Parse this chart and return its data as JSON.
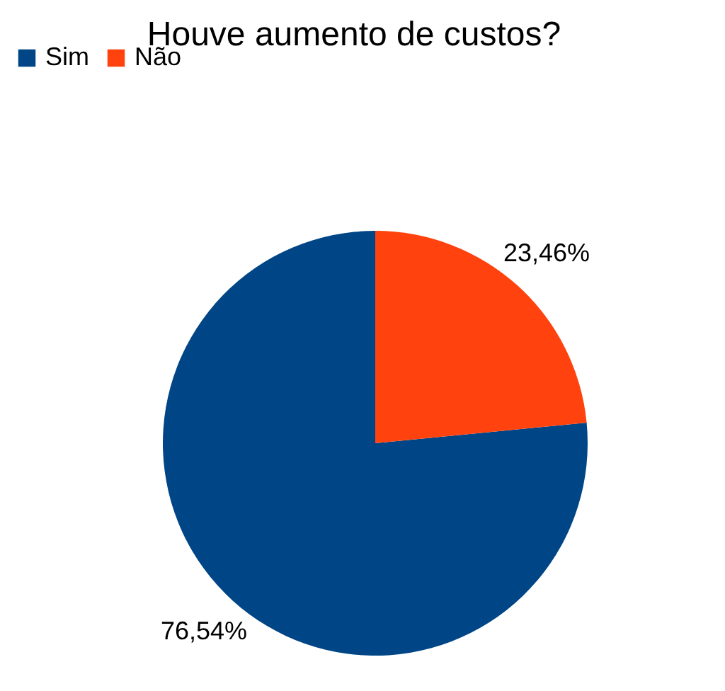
{
  "chart_data": {
    "type": "pie",
    "title": "Houve aumento de custos?",
    "categories": [
      "Sim",
      "Não"
    ],
    "values": [
      76.54,
      23.46
    ],
    "colors": [
      "#004586",
      "#ff420e"
    ],
    "value_labels": [
      "76,54%",
      "23,46%"
    ],
    "legend": "top"
  }
}
